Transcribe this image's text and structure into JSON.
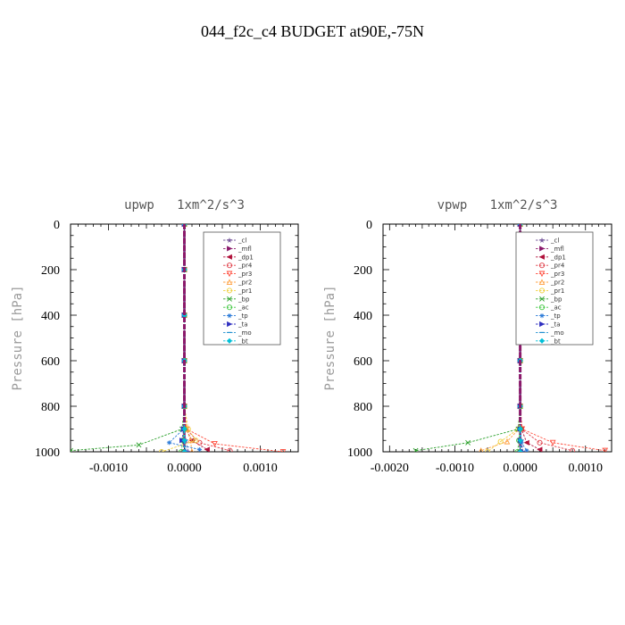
{
  "figure": {
    "title": "044_f2c_c4  BUDGET at90E,-75N"
  },
  "colors": {
    "_cl": "#7a5c9e",
    "_mfl": "#8b1a6b",
    "_dp1": "#b0103a",
    "_pr4": "#e0404a",
    "_pr3": "#ff4a3a",
    "_pr2": "#ffa040",
    "_pr1": "#f0d040",
    "_bp": "#2aa02a",
    "_ac": "#40c840",
    "_tp": "#2a7ad8",
    "_ta": "#3030c0",
    "_mo": "#2090d0",
    "_bt": "#00c0d8"
  },
  "chart_data": [
    {
      "type": "line",
      "title": "upwp   1xm^2/s^3",
      "ylabel": "Pressure [hPa]",
      "xlabel": "",
      "xlim": [
        -0.0015,
        0.0015
      ],
      "ylim": [
        1000,
        0
      ],
      "y_reversed": true,
      "grid": false,
      "legend_position": "top-right",
      "xticks": [
        -0.001,
        0,
        0.001
      ],
      "xtick_labels": [
        "-0.0010",
        "0.0000",
        "0.0010"
      ],
      "yticks": [
        0,
        200,
        400,
        600,
        800,
        1000
      ],
      "ytick_labels": [
        "0",
        "200",
        "400",
        "600",
        "800",
        "1000"
      ],
      "series": [
        {
          "name": "_cl",
          "x": [
            0,
            0,
            0,
            0,
            0,
            0,
            2e-05,
            5e-05
          ],
          "y": [
            0,
            200,
            400,
            600,
            800,
            900,
            950,
            1000
          ]
        },
        {
          "name": "_mfl",
          "x": [
            0,
            0,
            0,
            0,
            0,
            0,
            0,
            0
          ],
          "y": [
            0,
            200,
            400,
            600,
            800,
            900,
            950,
            1000
          ]
        },
        {
          "name": "_dp1",
          "x": [
            0,
            0,
            0,
            0,
            0,
            2e-05,
            0.0001,
            0.0003
          ],
          "y": [
            0,
            200,
            400,
            600,
            800,
            900,
            950,
            990
          ]
        },
        {
          "name": "_pr4",
          "x": [
            0,
            0,
            0,
            0,
            0,
            2e-05,
            0.0002,
            0.0006
          ],
          "y": [
            0,
            200,
            400,
            600,
            800,
            900,
            960,
            995
          ]
        },
        {
          "name": "_pr3",
          "x": [
            0,
            0,
            0,
            0,
            0,
            3e-05,
            0.0004,
            0.0013
          ],
          "y": [
            0,
            200,
            400,
            600,
            800,
            900,
            965,
            1000
          ]
        },
        {
          "name": "_pr2",
          "x": [
            0,
            0,
            0,
            0,
            0,
            3e-05,
            8e-05,
            0.0001
          ],
          "y": [
            0,
            200,
            400,
            600,
            800,
            900,
            950,
            1000
          ]
        },
        {
          "name": "_pr1",
          "x": [
            0,
            0,
            0,
            0,
            0,
            5e-05,
            0.00015,
            -0.0003
          ],
          "y": [
            0,
            200,
            400,
            600,
            800,
            900,
            950,
            1000
          ]
        },
        {
          "name": "_bp",
          "x": [
            0,
            0,
            0,
            0,
            0,
            -3e-05,
            -0.0006,
            -0.0015
          ],
          "y": [
            0,
            200,
            400,
            600,
            800,
            900,
            970,
            995
          ]
        },
        {
          "name": "_ac",
          "x": [
            0,
            0,
            0,
            0,
            0,
            0,
            -2e-05,
            -4e-05
          ],
          "y": [
            0,
            200,
            400,
            600,
            800,
            900,
            950,
            1000
          ]
        },
        {
          "name": "_tp",
          "x": [
            0,
            0,
            0,
            0,
            0,
            -1e-05,
            -0.0002,
            0.0002
          ],
          "y": [
            0,
            200,
            400,
            600,
            800,
            900,
            960,
            990
          ]
        },
        {
          "name": "_ta",
          "x": [
            0,
            0,
            0,
            0,
            0,
            -1e-05,
            -3e-05,
            3e-05
          ],
          "y": [
            0,
            200,
            400,
            600,
            800,
            900,
            950,
            1000
          ]
        },
        {
          "name": "_mo",
          "x": [
            0,
            0,
            0,
            0,
            0,
            0,
            1e-05,
            2e-05
          ],
          "y": [
            0,
            200,
            400,
            600,
            800,
            900,
            950,
            1000
          ]
        },
        {
          "name": "_bt",
          "x": [
            0,
            0,
            0,
            0,
            0,
            0,
            0,
            0
          ],
          "y": [
            0,
            200,
            400,
            600,
            800,
            900,
            950,
            1000
          ]
        }
      ]
    },
    {
      "type": "line",
      "title": "vpwp   1xm^2/s^3",
      "ylabel": "Pressure [hPa]",
      "xlabel": "",
      "xlim": [
        -0.0021,
        0.0014
      ],
      "ylim": [
        1000,
        0
      ],
      "y_reversed": true,
      "grid": false,
      "legend_position": "top-right",
      "xticks": [
        -0.002,
        -0.001,
        0,
        0.001
      ],
      "xtick_labels": [
        "-0.0020",
        "-0.0010",
        "0.0000",
        "0.0010"
      ],
      "yticks": [
        0,
        200,
        400,
        600,
        800,
        1000
      ],
      "ytick_labels": [
        "0",
        "200",
        "400",
        "600",
        "800",
        "1000"
      ],
      "series": [
        {
          "name": "_cl",
          "x": [
            0,
            0,
            0,
            0,
            0,
            0,
            2e-05,
            4e-05
          ],
          "y": [
            0,
            200,
            400,
            600,
            800,
            900,
            950,
            1000
          ]
        },
        {
          "name": "_mfl",
          "x": [
            0,
            0,
            0,
            0,
            0,
            0,
            0,
            0
          ],
          "y": [
            0,
            200,
            400,
            600,
            800,
            900,
            950,
            1000
          ]
        },
        {
          "name": "_dp1",
          "x": [
            0,
            0,
            0,
            0,
            0,
            2e-05,
            0.0001,
            0.0003
          ],
          "y": [
            0,
            200,
            400,
            600,
            800,
            900,
            960,
            990
          ]
        },
        {
          "name": "_pr4",
          "x": [
            0,
            0,
            0,
            0,
            0,
            2e-05,
            0.0003,
            0.0008
          ],
          "y": [
            0,
            200,
            400,
            600,
            800,
            900,
            960,
            995
          ]
        },
        {
          "name": "_pr3",
          "x": [
            0,
            0,
            0,
            0,
            0,
            3e-05,
            0.0005,
            0.0013
          ],
          "y": [
            0,
            200,
            400,
            600,
            800,
            900,
            960,
            995
          ]
        },
        {
          "name": "_pr2",
          "x": [
            0,
            0,
            0,
            0,
            0,
            -2e-05,
            -0.0002,
            -0.0006
          ],
          "y": [
            0,
            200,
            400,
            600,
            800,
            900,
            955,
            995
          ]
        },
        {
          "name": "_pr1",
          "x": [
            0,
            0,
            0,
            0,
            0,
            -3e-05,
            -0.0003,
            -0.0005
          ],
          "y": [
            0,
            200,
            400,
            600,
            800,
            900,
            955,
            1000
          ]
        },
        {
          "name": "_bp",
          "x": [
            0,
            0,
            0,
            0,
            0,
            -3e-05,
            -0.0008,
            -0.0016
          ],
          "y": [
            0,
            200,
            400,
            600,
            800,
            900,
            960,
            995
          ]
        },
        {
          "name": "_ac",
          "x": [
            0,
            0,
            0,
            0,
            0,
            0,
            -2e-05,
            -4e-05
          ],
          "y": [
            0,
            200,
            400,
            600,
            800,
            900,
            950,
            1000
          ]
        },
        {
          "name": "_tp",
          "x": [
            0,
            0,
            0,
            0,
            0,
            0,
            2e-05,
            0.0001
          ],
          "y": [
            0,
            200,
            400,
            600,
            800,
            900,
            960,
            995
          ]
        },
        {
          "name": "_ta",
          "x": [
            0,
            0,
            0,
            0,
            0,
            0,
            1e-05,
            3e-05
          ],
          "y": [
            0,
            200,
            400,
            600,
            800,
            900,
            950,
            1000
          ]
        },
        {
          "name": "_mo",
          "x": [
            0,
            0,
            0,
            0,
            0,
            0,
            1e-05,
            2e-05
          ],
          "y": [
            0,
            200,
            400,
            600,
            800,
            900,
            950,
            1000
          ]
        },
        {
          "name": "_bt",
          "x": [
            0,
            0,
            0,
            0,
            0,
            0,
            0,
            0
          ],
          "y": [
            0,
            200,
            400,
            600,
            800,
            900,
            950,
            1000
          ]
        }
      ]
    }
  ]
}
